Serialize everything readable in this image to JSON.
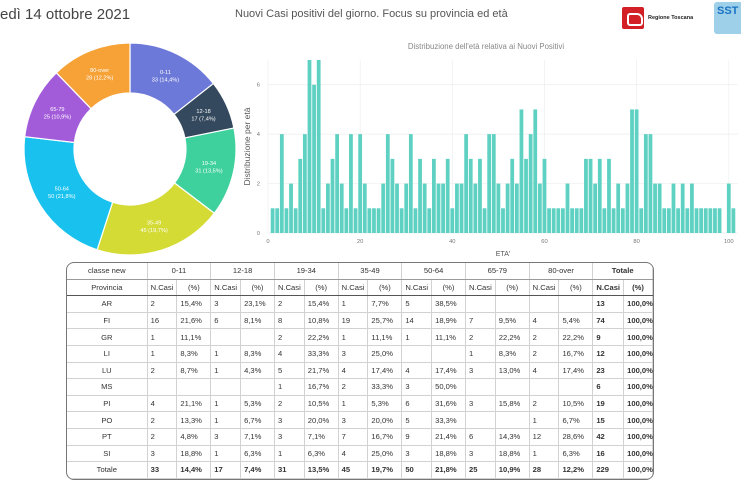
{
  "header": {
    "date": "edì 14 ottobre 2021",
    "title": "Nuovi Casi positivi del giorno. Focus su provincia ed età",
    "logo_text": "Regione Toscana",
    "logo2_text": "SST"
  },
  "donut": {
    "slices": [
      {
        "label": "0-11",
        "value": 33,
        "pct": "(14,4%)",
        "color": "#6d79d8"
      },
      {
        "label": "12-18",
        "value": 17,
        "pct": "(7,4%)",
        "color": "#34495e"
      },
      {
        "label": "19-34",
        "value": 31,
        "pct": "(13,5%)",
        "color": "#3fd19d"
      },
      {
        "label": "35-49",
        "value": 45,
        "pct": "(19,7%)",
        "color": "#d4db34"
      },
      {
        "label": "50-64",
        "value": 50,
        "pct": "(21,8%)",
        "color": "#19c2ee"
      },
      {
        "label": "65-79",
        "value": 25,
        "pct": "(10,9%)",
        "color": "#a35cd9"
      },
      {
        "label": "80-over",
        "value": 28,
        "pct": "(12,2%)",
        "color": "#f6a236"
      }
    ]
  },
  "chart_data": {
    "type": "bar",
    "title": "Distribuzione dell'età relativa ai Nuovi Positivi",
    "xlabel": "ETA'",
    "ylabel": "Distribuzione per età",
    "xlim": [
      0,
      102
    ],
    "ylim": [
      0,
      7
    ],
    "xticks": [
      0,
      20,
      40,
      60,
      80,
      100
    ],
    "yticks": [
      0,
      2,
      4,
      6
    ],
    "color": "#5fd1c2",
    "x": [
      1,
      2,
      3,
      4,
      5,
      6,
      7,
      8,
      9,
      10,
      11,
      12,
      13,
      14,
      15,
      16,
      17,
      18,
      19,
      20,
      21,
      22,
      23,
      24,
      25,
      26,
      27,
      28,
      29,
      30,
      31,
      32,
      33,
      34,
      35,
      36,
      37,
      38,
      39,
      40,
      41,
      42,
      43,
      44,
      45,
      46,
      47,
      48,
      49,
      50,
      51,
      52,
      53,
      54,
      55,
      56,
      57,
      58,
      59,
      60,
      61,
      62,
      63,
      64,
      65,
      66,
      67,
      68,
      69,
      70,
      71,
      72,
      73,
      74,
      75,
      76,
      77,
      78,
      79,
      80,
      81,
      82,
      83,
      84,
      85,
      86,
      87,
      88,
      89,
      90,
      91,
      92,
      93,
      94,
      95,
      96,
      97,
      98,
      99,
      100,
      101
    ],
    "values": [
      1,
      1,
      4,
      1,
      2,
      1,
      3,
      4,
      7,
      6,
      7,
      1,
      2,
      3,
      4,
      2,
      1,
      4,
      1,
      4,
      2,
      1,
      1,
      1,
      2,
      4,
      3,
      2,
      1,
      2,
      4,
      1,
      3,
      2,
      1,
      3,
      2,
      2,
      3,
      1,
      2,
      2,
      4,
      3,
      2,
      3,
      1,
      4,
      4,
      2,
      1,
      2,
      3,
      2,
      5,
      3,
      4,
      5,
      2,
      3,
      1,
      1,
      1,
      1,
      2,
      1,
      1,
      1,
      3,
      3,
      2,
      3,
      1,
      3,
      1,
      2,
      1,
      2,
      5,
      5,
      1,
      4,
      4,
      2,
      2,
      1,
      1,
      2,
      1,
      2,
      1,
      2,
      1,
      1,
      1,
      1,
      1,
      1,
      0,
      2,
      1
    ]
  },
  "table": {
    "group_label": "classe new",
    "province_label": "Provincia",
    "groups": [
      "0-11",
      "12-18",
      "19-34",
      "35-49",
      "50-64",
      "65-79",
      "80-over"
    ],
    "total_label": "Totale",
    "sub_n": "N.Casi",
    "sub_pct": "(%)",
    "rows": [
      {
        "prov": "AR",
        "cells": [
          "2",
          "15,4%",
          "3",
          "23,1%",
          "2",
          "15,4%",
          "1",
          "7,7%",
          "5",
          "38,5%",
          "",
          "",
          "",
          ""
        ],
        "n": "13",
        "pct": "100,0%"
      },
      {
        "prov": "FI",
        "cells": [
          "16",
          "21,6%",
          "6",
          "8,1%",
          "8",
          "10,8%",
          "19",
          "25,7%",
          "14",
          "18,9%",
          "7",
          "9,5%",
          "4",
          "5,4%"
        ],
        "n": "74",
        "pct": "100,0%"
      },
      {
        "prov": "GR",
        "cells": [
          "1",
          "11,1%",
          "",
          "",
          "2",
          "22,2%",
          "1",
          "11,1%",
          "1",
          "11,1%",
          "2",
          "22,2%",
          "2",
          "22,2%"
        ],
        "n": "9",
        "pct": "100,0%"
      },
      {
        "prov": "LI",
        "cells": [
          "1",
          "8,3%",
          "1",
          "8,3%",
          "4",
          "33,3%",
          "3",
          "25,0%",
          "",
          "",
          "1",
          "8,3%",
          "2",
          "16,7%"
        ],
        "n": "12",
        "pct": "100,0%"
      },
      {
        "prov": "LU",
        "cells": [
          "2",
          "8,7%",
          "1",
          "4,3%",
          "5",
          "21,7%",
          "4",
          "17,4%",
          "4",
          "17,4%",
          "3",
          "13,0%",
          "4",
          "17,4%"
        ],
        "n": "23",
        "pct": "100,0%"
      },
      {
        "prov": "MS",
        "cells": [
          "",
          "",
          "",
          "",
          "1",
          "16,7%",
          "2",
          "33,3%",
          "3",
          "50,0%",
          "",
          "",
          "",
          ""
        ],
        "n": "6",
        "pct": "100,0%"
      },
      {
        "prov": "PI",
        "cells": [
          "4",
          "21,1%",
          "1",
          "5,3%",
          "2",
          "10,5%",
          "1",
          "5,3%",
          "6",
          "31,6%",
          "3",
          "15,8%",
          "2",
          "10,5%"
        ],
        "n": "19",
        "pct": "100,0%"
      },
      {
        "prov": "PO",
        "cells": [
          "2",
          "13,3%",
          "1",
          "6,7%",
          "3",
          "20,0%",
          "3",
          "20,0%",
          "5",
          "33,3%",
          "",
          "",
          "1",
          "6,7%"
        ],
        "n": "15",
        "pct": "100,0%"
      },
      {
        "prov": "PT",
        "cells": [
          "2",
          "4,8%",
          "3",
          "7,1%",
          "3",
          "7,1%",
          "7",
          "16,7%",
          "9",
          "21,4%",
          "6",
          "14,3%",
          "12",
          "28,6%"
        ],
        "n": "42",
        "pct": "100,0%"
      },
      {
        "prov": "SI",
        "cells": [
          "3",
          "18,8%",
          "1",
          "6,3%",
          "1",
          "6,3%",
          "4",
          "25,0%",
          "3",
          "18,8%",
          "3",
          "18,8%",
          "1",
          "6,3%"
        ],
        "n": "16",
        "pct": "100,0%"
      }
    ],
    "totals": {
      "label": "Totale",
      "cells": [
        "33",
        "14,4%",
        "17",
        "7,4%",
        "31",
        "13,5%",
        "45",
        "19,7%",
        "50",
        "21,8%",
        "25",
        "10,9%",
        "28",
        "12,2%"
      ],
      "n": "229",
      "pct": "100,0%"
    }
  }
}
